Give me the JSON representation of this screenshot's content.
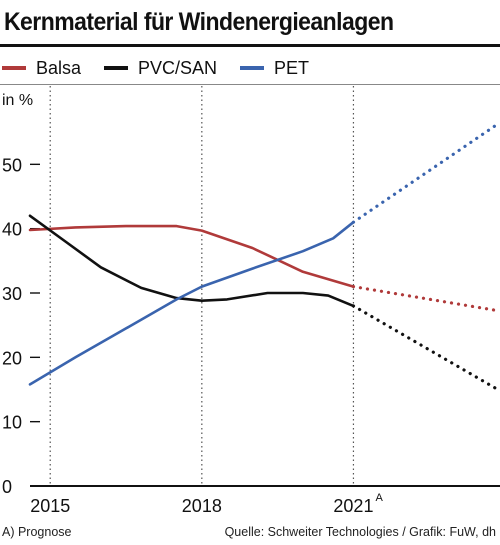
{
  "title": "Kernmaterial für Windenergieanlagen",
  "legend": [
    {
      "label": "Balsa",
      "color": "#b03a3a"
    },
    {
      "label": "PVC/SAN",
      "color": "#111111"
    },
    {
      "label": "PET",
      "color": "#3a64ae"
    }
  ],
  "footer": {
    "note": "A) Prognose",
    "source": "Quelle: Schweiter Technologies / Grafik: FuW, dh"
  },
  "chart_data": {
    "type": "line",
    "ylabel": "in %",
    "ylim": [
      0,
      60
    ],
    "yticks": [
      0,
      10,
      20,
      30,
      40,
      50
    ],
    "xlim": [
      2014.6,
      2023.9
    ],
    "xticks": [
      {
        "value": 2015,
        "label": "2015"
      },
      {
        "value": 2018,
        "label": "2018"
      },
      {
        "value": 2021,
        "label": "2021",
        "superscript": "A"
      }
    ],
    "grid": "vertical-dotted",
    "forecast_from": 2021,
    "series": [
      {
        "name": "Balsa",
        "color": "#b03a3a",
        "x": [
          2014.6,
          2015.5,
          2016.5,
          2017.5,
          2018.0,
          2019.0,
          2020.0,
          2021.0,
          2023.9
        ],
        "y": [
          39.8,
          40.2,
          40.4,
          40.4,
          39.7,
          37.0,
          33.3,
          31.0,
          27.2
        ]
      },
      {
        "name": "PVC/SAN",
        "color": "#111111",
        "x": [
          2014.6,
          2015.3,
          2016.0,
          2016.8,
          2017.5,
          2018.0,
          2018.5,
          2019.3,
          2020.0,
          2020.5,
          2021.0,
          2023.9
        ],
        "y": [
          42.0,
          38.0,
          34.0,
          30.8,
          29.2,
          28.8,
          29.0,
          30.0,
          30.0,
          29.6,
          28.0,
          14.8
        ]
      },
      {
        "name": "PET",
        "color": "#3a64ae",
        "x": [
          2014.6,
          2015.5,
          2016.5,
          2017.5,
          2018.0,
          2019.0,
          2020.0,
          2020.6,
          2021.0,
          2023.9
        ],
        "y": [
          15.8,
          20.0,
          24.5,
          29.0,
          31.0,
          33.8,
          36.5,
          38.5,
          41.0,
          56.5
        ]
      }
    ]
  }
}
